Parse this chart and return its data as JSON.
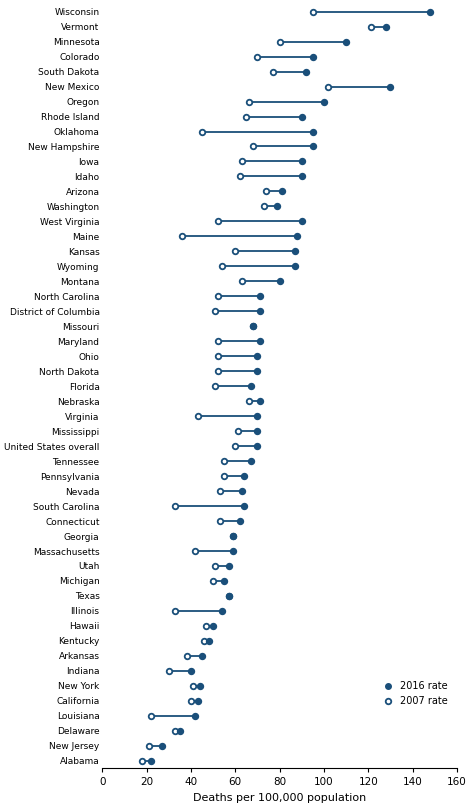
{
  "states_data": [
    [
      "Wisconsin",
      95,
      148
    ],
    [
      "Vermont",
      121,
      128
    ],
    [
      "Minnesota",
      80,
      110
    ],
    [
      "Colorado",
      70,
      95
    ],
    [
      "South Dakota",
      77,
      92
    ],
    [
      "New Mexico",
      102,
      130
    ],
    [
      "Oregon",
      66,
      100
    ],
    [
      "Rhode Island",
      65,
      90
    ],
    [
      "Oklahoma",
      45,
      95
    ],
    [
      "New Hampshire",
      68,
      95
    ],
    [
      "Iowa",
      63,
      90
    ],
    [
      "Idaho",
      62,
      90
    ],
    [
      "Arizona",
      74,
      81
    ],
    [
      "Washington",
      73,
      79
    ],
    [
      "West Virginia",
      52,
      90
    ],
    [
      "Maine",
      36,
      88
    ],
    [
      "Kansas",
      60,
      87
    ],
    [
      "Wyoming",
      54,
      87
    ],
    [
      "Montana",
      63,
      80
    ],
    [
      "North Carolina",
      52,
      71
    ],
    [
      "District of Columbia",
      51,
      71
    ],
    [
      "Missouri",
      68,
      68
    ],
    [
      "Maryland",
      52,
      71
    ],
    [
      "Ohio",
      52,
      70
    ],
    [
      "North Dakota",
      52,
      70
    ],
    [
      "Florida",
      51,
      67
    ],
    [
      "Nebraska",
      66,
      71
    ],
    [
      "Virginia",
      43,
      70
    ],
    [
      "Mississippi",
      61,
      70
    ],
    [
      "United States overall",
      60,
      70
    ],
    [
      "Tennessee",
      55,
      67
    ],
    [
      "Pennsylvania",
      55,
      64
    ],
    [
      "Nevada",
      53,
      63
    ],
    [
      "South Carolina",
      33,
      64
    ],
    [
      "Connecticut",
      53,
      62
    ],
    [
      "Georgia",
      59,
      59
    ],
    [
      "Massachusetts",
      42,
      59
    ],
    [
      "Utah",
      51,
      57
    ],
    [
      "Michigan",
      50,
      55
    ],
    [
      "Texas",
      57,
      57
    ],
    [
      "Illinois",
      33,
      54
    ],
    [
      "Hawaii",
      47,
      50
    ],
    [
      "Kentucky",
      46,
      48
    ],
    [
      "Arkansas",
      38,
      45
    ],
    [
      "Indiana",
      30,
      40
    ],
    [
      "New York",
      41,
      44
    ],
    [
      "California",
      40,
      43
    ],
    [
      "Louisiana",
      22,
      42
    ],
    [
      "Delaware",
      33,
      35
    ],
    [
      "New Jersey",
      21,
      27
    ],
    [
      "Alabama",
      18,
      22
    ]
  ],
  "color": "#1a4f7a",
  "xlabel": "Deaths per 100,000 population",
  "xlim": [
    0,
    160
  ],
  "xticks": [
    0,
    20,
    40,
    60,
    80,
    100,
    120,
    140,
    160
  ]
}
